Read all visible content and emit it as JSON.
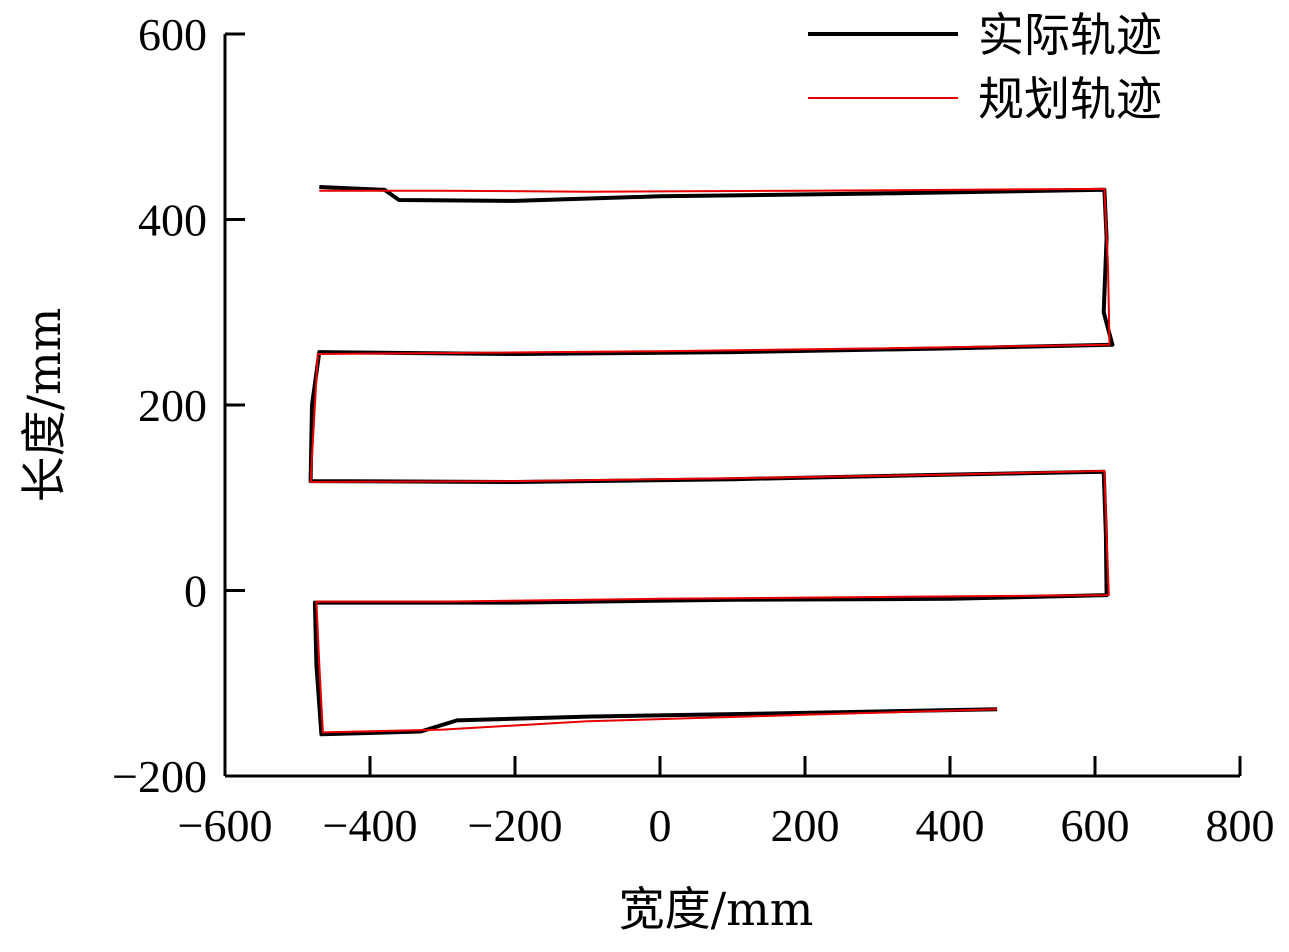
{
  "chart_data": {
    "type": "line",
    "title": "",
    "xlabel": "宽度/mm",
    "ylabel": "长度/mm",
    "xlim": [
      -600,
      800
    ],
    "ylim": [
      -200,
      600
    ],
    "x_ticks": [
      -600,
      -400,
      -200,
      0,
      200,
      400,
      600,
      800
    ],
    "y_ticks": [
      -200,
      0,
      200,
      400,
      600
    ],
    "x_tick_labels": [
      "−600",
      "−400",
      "−200",
      "0",
      "200",
      "400",
      "600",
      "800"
    ],
    "y_tick_labels": [
      "−200",
      "0",
      "200",
      "400",
      "600"
    ],
    "grid": false,
    "legend_position": "top-right",
    "series": [
      {
        "name": "实际轨迹",
        "color": "#000000",
        "points": [
          [
            -470,
            435
          ],
          [
            -380,
            432
          ],
          [
            -360,
            421
          ],
          [
            -200,
            420
          ],
          [
            0,
            425
          ],
          [
            300,
            428
          ],
          [
            613,
            432
          ],
          [
            616,
            380
          ],
          [
            612,
            300
          ],
          [
            624,
            265
          ],
          [
            400,
            261
          ],
          [
            100,
            257
          ],
          [
            -200,
            255
          ],
          [
            -470,
            257
          ],
          [
            -480,
            200
          ],
          [
            -482,
            118
          ],
          [
            -200,
            117
          ],
          [
            100,
            120
          ],
          [
            400,
            125
          ],
          [
            612,
            128
          ],
          [
            615,
            60
          ],
          [
            616,
            -5
          ],
          [
            400,
            -9
          ],
          [
            100,
            -10
          ],
          [
            -200,
            -13
          ],
          [
            -476,
            -13
          ],
          [
            -474,
            -80
          ],
          [
            -467,
            -155
          ],
          [
            -330,
            -152
          ],
          [
            -280,
            -140
          ],
          [
            -100,
            -136
          ],
          [
            200,
            -132
          ],
          [
            465,
            -128
          ]
        ]
      },
      {
        "name": "规划轨迹",
        "color": "#e60000",
        "points": [
          [
            -470,
            431
          ],
          [
            -300,
            431
          ],
          [
            -100,
            430
          ],
          [
            200,
            431
          ],
          [
            613,
            433
          ],
          [
            618,
            350
          ],
          [
            620,
            265
          ],
          [
            300,
            261
          ],
          [
            0,
            258
          ],
          [
            -300,
            256
          ],
          [
            -472,
            255
          ],
          [
            -476,
            200
          ],
          [
            -482,
            117
          ],
          [
            -200,
            118
          ],
          [
            100,
            121
          ],
          [
            400,
            125
          ],
          [
            613,
            129
          ],
          [
            616,
            60
          ],
          [
            619,
            -5
          ],
          [
            300,
            -7
          ],
          [
            0,
            -9
          ],
          [
            -300,
            -12
          ],
          [
            -474,
            -12
          ],
          [
            -470,
            -80
          ],
          [
            -465,
            -153
          ],
          [
            -300,
            -150
          ],
          [
            -100,
            -141
          ],
          [
            200,
            -134
          ],
          [
            465,
            -128
          ]
        ]
      }
    ]
  }
}
